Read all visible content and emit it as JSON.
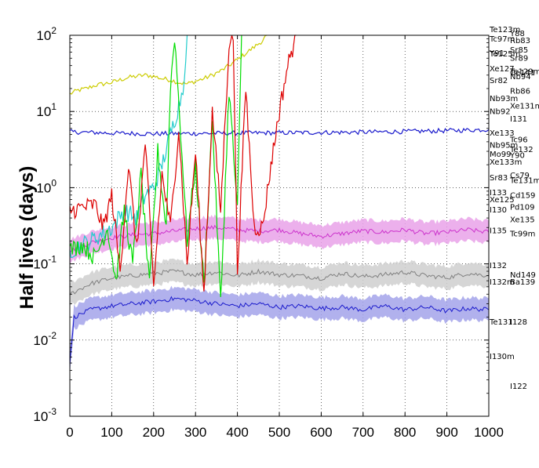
{
  "chart_data": {
    "type": "line",
    "title": "",
    "xlabel": "",
    "ylabel": "Half lives (days)",
    "xlim": [
      0,
      1000
    ],
    "ylim": [
      0.001,
      100
    ],
    "yscale": "log",
    "grid": true,
    "x_ticks": [
      "0",
      "100",
      "200",
      "300",
      "400",
      "500",
      "600",
      "700",
      "800",
      "900",
      "1000"
    ],
    "y_ticks": [
      {
        "base": "10",
        "exp": "-3"
      },
      {
        "base": "10",
        "exp": "-2"
      },
      {
        "base": "10",
        "exp": "-1"
      },
      {
        "base": "10",
        "exp": "0"
      },
      {
        "base": "10",
        "exp": "1"
      },
      {
        "base": "10",
        "exp": "2"
      }
    ],
    "isotope_labels": [
      {
        "text": "Y88",
        "value": 106.6,
        "col": 1
      },
      {
        "text": "Tc97m",
        "value": 90,
        "col": 0
      },
      {
        "text": "Rb83",
        "value": 86.2,
        "col": 1
      },
      {
        "text": "Te125m",
        "value": 57.4,
        "col": 0
      },
      {
        "text": "Sr85",
        "value": 64.8,
        "col": 1
      },
      {
        "text": "Y91",
        "value": 58.5,
        "col": 0
      },
      {
        "text": "Te129m",
        "value": 33.6,
        "col": 1
      },
      {
        "text": "Sr89",
        "value": 50.5,
        "col": 1
      },
      {
        "text": "Xe127",
        "value": 36.4,
        "col": 0
      },
      {
        "text": "Ce141",
        "value": 32.5,
        "col": 1
      },
      {
        "text": "Te123m",
        "value": 119.5,
        "col": 0
      },
      {
        "text": "Nb94",
        "value": 29,
        "col": 1
      },
      {
        "text": "Sr82",
        "value": 25.5,
        "col": 0
      },
      {
        "text": "Rb86",
        "value": 18.6,
        "col": 1
      },
      {
        "text": "Nb93m",
        "value": 14.8,
        "col": 0
      },
      {
        "text": "Xe131m",
        "value": 11.9,
        "col": 1
      },
      {
        "text": "Nb92",
        "value": 10.1,
        "col": 0
      },
      {
        "text": "I131",
        "value": 8.02,
        "col": 1
      },
      {
        "text": "Xe133",
        "value": 5.25,
        "col": 0
      },
      {
        "text": "Tc96",
        "value": 4.28,
        "col": 1
      },
      {
        "text": "Nb95m",
        "value": 3.61,
        "col": 0
      },
      {
        "text": "Xe133m",
        "value": 2.19,
        "col": 0
      },
      {
        "text": "Mo99",
        "value": 2.75,
        "col": 0
      },
      {
        "text": "Te132",
        "value": 3.2,
        "col": 1
      },
      {
        "text": "Y90",
        "value": 2.67,
        "col": 1
      },
      {
        "text": "Sr83",
        "value": 1.35,
        "col": 0
      },
      {
        "text": "Cs79",
        "value": 1.46,
        "col": 1
      },
      {
        "text": "Te131m",
        "value": 1.25,
        "col": 1
      },
      {
        "text": "I133",
        "value": 0.87,
        "col": 0
      },
      {
        "text": "Xe125",
        "value": 0.7,
        "col": 0
      },
      {
        "text": "Cd159",
        "value": 0.8,
        "col": 1
      },
      {
        "text": "I130",
        "value": 0.515,
        "col": 0
      },
      {
        "text": "Pd109",
        "value": 0.56,
        "col": 1
      },
      {
        "text": "Xe135",
        "value": 0.38,
        "col": 1
      },
      {
        "text": "I135",
        "value": 0.275,
        "col": 0
      },
      {
        "text": "Tc99m",
        "value": 0.25,
        "col": 1
      },
      {
        "text": "I132",
        "value": 0.0958,
        "col": 0
      },
      {
        "text": "Nd149",
        "value": 0.072,
        "col": 1
      },
      {
        "text": "I132m",
        "value": 0.058,
        "col": 0
      },
      {
        "text": "Ba139",
        "value": 0.058,
        "col": 1
      },
      {
        "text": "Te131",
        "value": 0.0174,
        "col": 0
      },
      {
        "text": "I128",
        "value": 0.0174,
        "col": 1
      },
      {
        "text": "I130m",
        "value": 0.0061,
        "col": 0
      },
      {
        "text": "I122",
        "value": 0.0025,
        "col": 1
      }
    ],
    "series": [
      {
        "color": "#cccc00",
        "points": [
          [
            0,
            17
          ],
          [
            20,
            19
          ],
          [
            40,
            20
          ],
          [
            60,
            22
          ],
          [
            80,
            23
          ],
          [
            100,
            24
          ],
          [
            120,
            26
          ],
          [
            140,
            28
          ],
          [
            160,
            29
          ],
          [
            180,
            30
          ],
          [
            200,
            29
          ],
          [
            220,
            27
          ],
          [
            240,
            26
          ],
          [
            260,
            24
          ],
          [
            280,
            23
          ],
          [
            300,
            25
          ],
          [
            320,
            27
          ],
          [
            340,
            30
          ],
          [
            360,
            34
          ],
          [
            380,
            40
          ],
          [
            400,
            48
          ],
          [
            420,
            58
          ],
          [
            440,
            70
          ],
          [
            460,
            85
          ],
          [
            470,
            100
          ]
        ]
      },
      {
        "color": "#1a1acc",
        "points": [
          [
            0,
            5.4
          ],
          [
            100,
            5.2
          ],
          [
            200,
            5.1
          ],
          [
            300,
            5.15
          ],
          [
            400,
            5.2
          ],
          [
            500,
            5.25
          ],
          [
            600,
            5.3
          ],
          [
            700,
            5.35
          ],
          [
            800,
            5.45
          ],
          [
            900,
            5.6
          ],
          [
            1000,
            5.8
          ]
        ]
      },
      {
        "color": "#cc33cc",
        "band_color": "#e9a2e9",
        "points": [
          [
            0,
            0.15
          ],
          [
            50,
            0.19
          ],
          [
            100,
            0.22
          ],
          [
            150,
            0.24
          ],
          [
            200,
            0.25
          ],
          [
            250,
            0.27
          ],
          [
            300,
            0.29
          ],
          [
            350,
            0.3
          ],
          [
            400,
            0.28
          ],
          [
            450,
            0.27
          ],
          [
            500,
            0.28
          ],
          [
            550,
            0.25
          ],
          [
            600,
            0.23
          ],
          [
            650,
            0.25
          ],
          [
            700,
            0.27
          ],
          [
            750,
            0.26
          ],
          [
            800,
            0.28
          ],
          [
            850,
            0.25
          ],
          [
            900,
            0.26
          ],
          [
            950,
            0.28
          ],
          [
            1000,
            0.26
          ]
        ]
      },
      {
        "color": "#808080",
        "band_color": "#cfcfcf",
        "points": [
          [
            0,
            0.04
          ],
          [
            50,
            0.055
          ],
          [
            100,
            0.065
          ],
          [
            150,
            0.07
          ],
          [
            200,
            0.075
          ],
          [
            250,
            0.08
          ],
          [
            300,
            0.072
          ],
          [
            350,
            0.078
          ],
          [
            400,
            0.07
          ],
          [
            450,
            0.08
          ],
          [
            500,
            0.072
          ],
          [
            550,
            0.07
          ],
          [
            600,
            0.065
          ],
          [
            650,
            0.075
          ],
          [
            700,
            0.068
          ],
          [
            750,
            0.072
          ],
          [
            800,
            0.078
          ],
          [
            850,
            0.07
          ],
          [
            900,
            0.066
          ],
          [
            950,
            0.075
          ],
          [
            1000,
            0.07
          ]
        ]
      },
      {
        "color": "#1a1acc",
        "band_color": "#a3a3ea",
        "points": [
          [
            0,
            0.005
          ],
          [
            10,
            0.02
          ],
          [
            50,
            0.025
          ],
          [
            100,
            0.028
          ],
          [
            150,
            0.03
          ],
          [
            200,
            0.032
          ],
          [
            250,
            0.035
          ],
          [
            300,
            0.033
          ],
          [
            350,
            0.03
          ],
          [
            400,
            0.028
          ],
          [
            450,
            0.03
          ],
          [
            500,
            0.027
          ],
          [
            550,
            0.028
          ],
          [
            600,
            0.026
          ],
          [
            650,
            0.027
          ],
          [
            700,
            0.025
          ],
          [
            750,
            0.028
          ],
          [
            800,
            0.025
          ],
          [
            850,
            0.027
          ],
          [
            900,
            0.024
          ],
          [
            950,
            0.026
          ],
          [
            1000,
            0.025
          ]
        ]
      },
      {
        "color": "#22cccc",
        "points": [
          [
            0,
            0.15
          ],
          [
            50,
            0.2
          ],
          [
            100,
            0.3
          ],
          [
            130,
            0.5
          ],
          [
            160,
            0.4
          ],
          [
            180,
            0.8
          ],
          [
            200,
            1.0
          ],
          [
            220,
            2.0
          ],
          [
            240,
            5.0
          ],
          [
            260,
            12
          ],
          [
            270,
            20
          ],
          [
            280,
            100
          ]
        ]
      },
      {
        "color": "#00dd00",
        "points": [
          [
            0,
            0.15
          ],
          [
            30,
            0.18
          ],
          [
            60,
            0.12
          ],
          [
            90,
            0.3
          ],
          [
            110,
            0.06
          ],
          [
            130,
            0.5
          ],
          [
            150,
            0.1
          ],
          [
            170,
            1.5
          ],
          [
            190,
            0.05
          ],
          [
            210,
            3
          ],
          [
            230,
            0.3
          ],
          [
            240,
            20
          ],
          [
            250,
            100
          ],
          [
            265,
            5
          ],
          [
            280,
            0.2
          ],
          [
            300,
            2
          ],
          [
            320,
            0.05
          ],
          [
            340,
            8
          ],
          [
            360,
            0.03
          ],
          [
            380,
            20
          ],
          [
            400,
            0.5
          ],
          [
            410,
            100
          ]
        ]
      },
      {
        "color": "#dd0000",
        "points": [
          [
            0,
            0.5
          ],
          [
            30,
            0.55
          ],
          [
            60,
            0.6
          ],
          [
            80,
            0.3
          ],
          [
            100,
            0.8
          ],
          [
            120,
            0.08
          ],
          [
            140,
            2
          ],
          [
            160,
            0.15
          ],
          [
            180,
            4
          ],
          [
            200,
            0.05
          ],
          [
            220,
            1.5
          ],
          [
            240,
            0.3
          ],
          [
            260,
            6
          ],
          [
            280,
            0.1
          ],
          [
            300,
            3
          ],
          [
            320,
            0.04
          ],
          [
            340,
            10
          ],
          [
            360,
            0.5
          ],
          [
            380,
            80
          ],
          [
            390,
            100
          ],
          [
            400,
            0.08
          ],
          [
            420,
            20
          ],
          [
            440,
            0.3
          ],
          [
            460,
            0.3
          ],
          [
            480,
            2
          ],
          [
            500,
            10
          ],
          [
            520,
            40
          ],
          [
            540,
            100
          ]
        ]
      }
    ]
  }
}
